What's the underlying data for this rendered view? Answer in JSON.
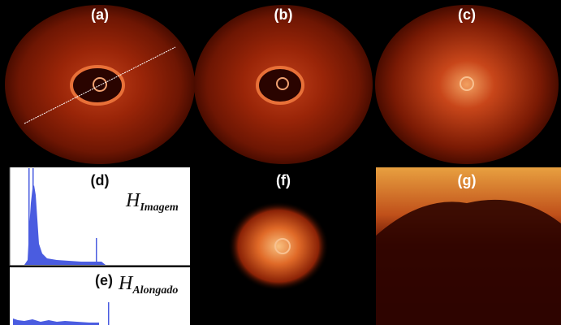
{
  "panels": [
    "(a)",
    "(b)",
    "(c)",
    "(d)",
    "(e)",
    "(f)",
    "(g)"
  ],
  "histograms": [
    {
      "symbol": "H",
      "subscript": "Imagem"
    },
    {
      "symbol": "H",
      "subscript": "Alongado"
    }
  ]
}
